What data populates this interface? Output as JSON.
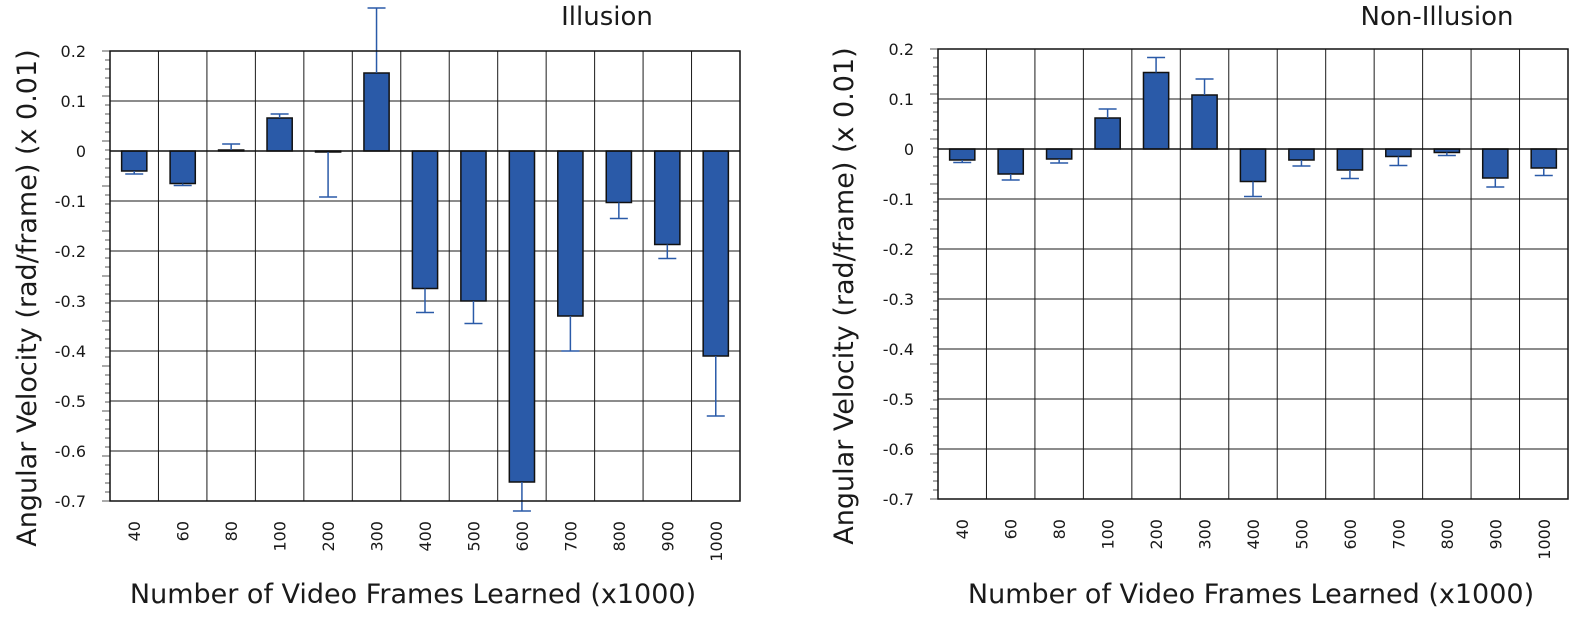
{
  "chart_data": [
    {
      "type": "bar",
      "title": "Illusion",
      "xlabel": "Number of Video Frames Learned (x1000)",
      "ylabel": "Angular Velocity (rad/frame) (x 0.01)",
      "ylim": [
        -0.7,
        0.2
      ],
      "yticks": [
        "0.2",
        "0.1",
        "0",
        "-0.1",
        "-0.2",
        "-0.3",
        "-0.4",
        "-0.5",
        "-0.6",
        "-0.7"
      ],
      "grid": true,
      "categories": [
        "40",
        "60",
        "80",
        "100",
        "200",
        "300",
        "400",
        "500",
        "600",
        "700",
        "800",
        "900",
        "1000"
      ],
      "values": [
        -0.04,
        -0.065,
        0.002,
        0.066,
        -0.002,
        0.156,
        -0.275,
        -0.3,
        -0.662,
        -0.33,
        -0.103,
        -0.187,
        -0.41
      ],
      "errors": [
        0.006,
        0.004,
        0.012,
        0.008,
        0.09,
        0.13,
        0.048,
        0.045,
        0.058,
        0.07,
        0.032,
        0.028,
        0.12
      ],
      "color": "#2a5aa8"
    },
    {
      "type": "bar",
      "title": "Non-Illusion",
      "xlabel": "Number of Video Frames Learned (x1000)",
      "ylabel": "Angular Velocity (rad/frame) (x 0.01)",
      "ylim": [
        -0.7,
        0.2
      ],
      "yticks": [
        "0.2",
        "0.1",
        "0",
        "-0.1",
        "-0.2",
        "-0.3",
        "-0.4",
        "-0.5",
        "-0.6",
        "-0.7"
      ],
      "grid": true,
      "categories": [
        "40",
        "60",
        "80",
        "100",
        "200",
        "300",
        "400",
        "500",
        "600",
        "700",
        "800",
        "900",
        "1000"
      ],
      "values": [
        -0.022,
        -0.05,
        -0.02,
        0.062,
        0.153,
        0.108,
        -0.065,
        -0.022,
        -0.042,
        -0.015,
        -0.007,
        -0.058,
        -0.038
      ],
      "errors": [
        0.005,
        0.012,
        0.008,
        0.018,
        0.03,
        0.032,
        0.03,
        0.012,
        0.017,
        0.018,
        0.006,
        0.018,
        0.015
      ],
      "color": "#2a5aa8"
    }
  ]
}
